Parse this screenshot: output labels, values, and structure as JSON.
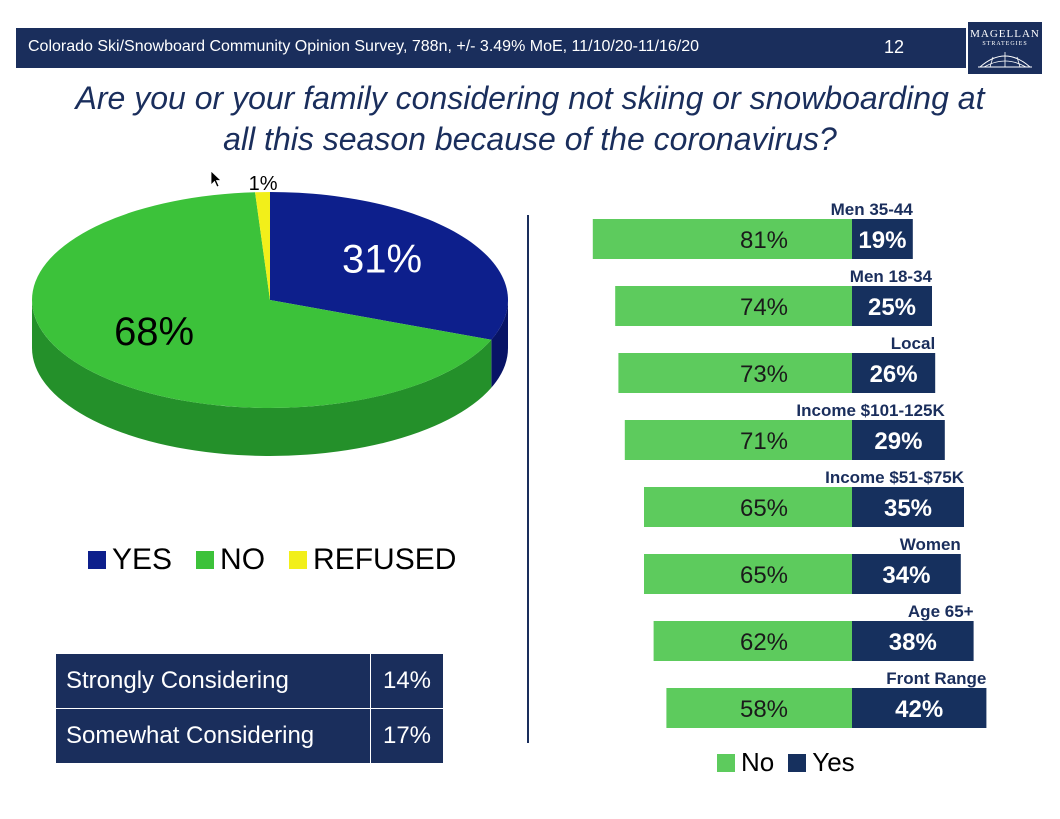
{
  "header": {
    "survey_line": "Colorado Ski/Snowboard Community Opinion Survey, 788n, +/- 3.49% MoE, 11/10/20-11/16/20",
    "page_number": "12",
    "logo_name": "MAGELLAN",
    "logo_sub": "STRATEGIES"
  },
  "title_line1": "Are you or your family considering not skiing or snowboarding at",
  "title_line2": "all this season because of the coronavirus?",
  "colors": {
    "navy": "#1a2e5c",
    "yes": "#0d1f8c",
    "no": "#3cc23a",
    "refused": "#f2ef1a",
    "bar_no": "#5dcb5d",
    "bar_yes": "#16305e"
  },
  "chart_data": [
    {
      "type": "pie",
      "slices": [
        {
          "name": "YES",
          "value": 31,
          "label": "31%"
        },
        {
          "name": "NO",
          "value": 68,
          "label": "68%"
        },
        {
          "name": "REFUSED",
          "value": 1,
          "label": "1%"
        }
      ],
      "legend": [
        "YES",
        "NO",
        "REFUSED"
      ],
      "legend_position": "bottom"
    },
    {
      "type": "bar",
      "orientation": "horizontal",
      "stacked": true,
      "categories": [
        "Men 35-44",
        "Men 18-34",
        "Local",
        "Income $101-125K",
        "Income $51-$75K",
        "Women",
        "Age 65+",
        "Front Range"
      ],
      "series": [
        {
          "name": "No",
          "values": [
            81,
            74,
            73,
            71,
            65,
            65,
            62,
            58
          ]
        },
        {
          "name": "Yes",
          "values": [
            19,
            25,
            26,
            29,
            35,
            34,
            38,
            42
          ]
        }
      ],
      "legend": [
        "No",
        "Yes"
      ],
      "legend_position": "bottom"
    }
  ],
  "considering_table": [
    {
      "label": "Strongly Considering",
      "value": "14%"
    },
    {
      "label": "Somewhat Considering",
      "value": "17%"
    }
  ]
}
